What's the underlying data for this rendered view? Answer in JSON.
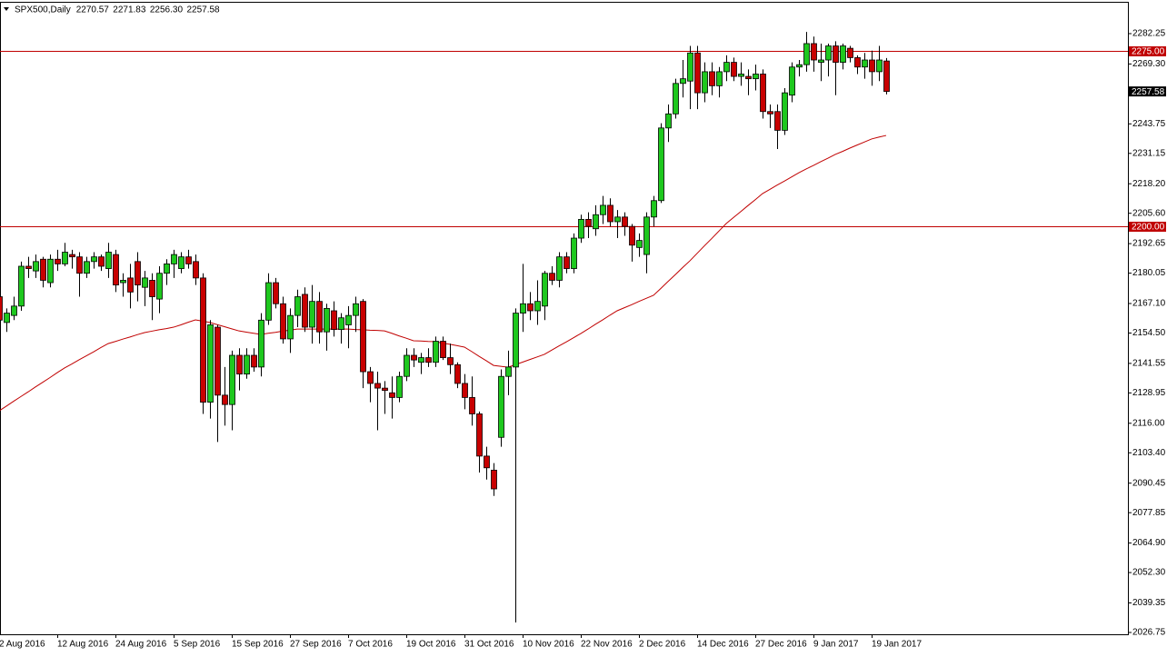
{
  "chart_data": {
    "type": "candlestick",
    "title": "SPX500,Daily",
    "last_bar_labels": [
      "2270.57",
      "2271.83",
      "2256.30",
      "2257.58"
    ],
    "categories": [
      "2 Aug 2016",
      null,
      null,
      null,
      null,
      null,
      null,
      null,
      "12 Aug 2016",
      null,
      null,
      null,
      null,
      null,
      null,
      null,
      "24 Aug 2016",
      null,
      null,
      null,
      null,
      null,
      null,
      null,
      "5 Sep 2016",
      null,
      null,
      null,
      null,
      null,
      null,
      null,
      "15 Sep 2016",
      null,
      null,
      null,
      null,
      null,
      null,
      null,
      "27 Sep 2016",
      null,
      null,
      null,
      null,
      null,
      null,
      null,
      "7 Oct 2016",
      null,
      null,
      null,
      null,
      null,
      null,
      null,
      "19 Oct 2016",
      null,
      null,
      null,
      null,
      null,
      null,
      null,
      "31 Oct 2016",
      null,
      null,
      null,
      null,
      null,
      null,
      null,
      "10 Nov 2016",
      null,
      null,
      null,
      null,
      null,
      null,
      null,
      "22 Nov 2016",
      null,
      null,
      null,
      null,
      null,
      null,
      null,
      "2 Dec 2016",
      null,
      null,
      null,
      null,
      null,
      null,
      null,
      "14 Dec 2016",
      null,
      null,
      null,
      null,
      null,
      null,
      null,
      "27 Dec 2016",
      null,
      null,
      null,
      null,
      null,
      null,
      null,
      "9 Jan 2017",
      null,
      null,
      null,
      null,
      null,
      null,
      null,
      "19 Jan 2017",
      null,
      null
    ],
    "open": [
      2170,
      2159,
      2162,
      2166,
      2183,
      2181,
      2186,
      2176,
      2186,
      2184,
      2188,
      2187,
      2180,
      2185,
      2187,
      2182,
      2188,
      2176,
      2178,
      2185,
      2174,
      2177,
      2169,
      2180,
      2184,
      2182,
      2187,
      2185,
      2178,
      2125,
      2157,
      2128,
      2124,
      2145,
      2137,
      2145,
      2140,
      2160,
      2176,
      2167,
      2152,
      2162,
      2171,
      2157,
      2168,
      2155,
      2164,
      2156,
      2158,
      2162,
      2168,
      2138,
      2133,
      2131,
      2129,
      2127,
      2136,
      2145,
      2142,
      2144,
      2142,
      2151,
      2144,
      2141,
      2133,
      2127,
      2120,
      2102,
      2096,
      2110,
      2136,
      2140,
      2163,
      2167,
      2164,
      2166,
      2180,
      2177,
      2187,
      2182,
      2195,
      2203,
      2199,
      2205,
      2209,
      2202,
      2204,
      2200,
      2191,
      2188,
      2204,
      2211,
      2242,
      2248,
      2261,
      2262,
      2274,
      2257,
      2266,
      2260,
      2266,
      2270,
      2264,
      2264,
      2263,
      2265,
      2249,
      2249,
      2241,
      2256,
      2268,
      2269,
      2278,
      2270,
      2271,
      2277,
      2270,
      2276,
      2272,
      2268,
      2271,
      2266,
      2270.57
    ],
    "high": [
      2172,
      2165,
      2170,
      2185,
      2187,
      2188,
      2187,
      2188,
      2190,
      2193,
      2190,
      2189,
      2187,
      2189,
      2188,
      2193,
      2190,
      2180,
      2184,
      2189,
      2181,
      2180,
      2183,
      2186,
      2190,
      2189,
      2190,
      2188,
      2180,
      2160,
      2158,
      2140,
      2147,
      2148,
      2148,
      2148,
      2163,
      2180,
      2178,
      2170,
      2165,
      2173,
      2174,
      2175,
      2172,
      2167,
      2168,
      2163,
      2166,
      2170,
      2169,
      2140,
      2138,
      2134,
      2136,
      2138,
      2148,
      2148,
      2146,
      2148,
      2153,
      2153,
      2150,
      2142,
      2137,
      2136,
      2121,
      2106,
      2099,
      2139,
      2147,
      2165,
      2184,
      2172,
      2177,
      2181,
      2183,
      2189,
      2189,
      2197,
      2205,
      2206,
      2209,
      2213,
      2212,
      2207,
      2206,
      2201,
      2197,
      2206,
      2213,
      2244,
      2252,
      2263,
      2271,
      2277,
      2277,
      2270,
      2270,
      2268,
      2273,
      2272,
      2270,
      2267,
      2269,
      2267,
      2252,
      2252,
      2259,
      2270,
      2271,
      2283,
      2281,
      2278,
      2278,
      2279,
      2278,
      2277,
      2273,
      2274,
      2275,
      2277,
      2271.83
    ],
    "low": [
      2147,
      2155,
      2160,
      2164,
      2178,
      2178,
      2174,
      2174,
      2181,
      2183,
      2182,
      2170,
      2178,
      2182,
      2181,
      2178,
      2172,
      2170,
      2165,
      2168,
      2166,
      2160,
      2163,
      2175,
      2178,
      2180,
      2182,
      2175,
      2120,
      2118,
      2108,
      2115,
      2113,
      2130,
      2135,
      2138,
      2136,
      2158,
      2165,
      2150,
      2146,
      2157,
      2155,
      2150,
      2150,
      2147,
      2153,
      2150,
      2148,
      2155,
      2131,
      2125,
      2113,
      2120,
      2118,
      2125,
      2134,
      2140,
      2137,
      2140,
      2140,
      2143,
      2137,
      2131,
      2122,
      2115,
      2095,
      2092,
      2085,
      2106,
      2128,
      2031,
      2155,
      2160,
      2158,
      2160,
      2175,
      2174,
      2180,
      2180,
      2193,
      2195,
      2196,
      2201,
      2200,
      2195,
      2196,
      2185,
      2187,
      2180,
      2200,
      2210,
      2236,
      2246,
      2255,
      2250,
      2250,
      2253,
      2256,
      2255,
      2262,
      2262,
      2260,
      2256,
      2258,
      2246,
      2242,
      2233,
      2239,
      2253,
      2264,
      2266,
      2266,
      2262,
      2264,
      2256,
      2267,
      2270,
      2265,
      2263,
      2260,
      2262,
      2256.3
    ],
    "close": [
      2160,
      2163,
      2166,
      2183,
      2182,
      2185,
      2177,
      2186,
      2184,
      2189,
      2187,
      2180,
      2185,
      2187,
      2183,
      2189,
      2175,
      2177,
      2172,
      2175,
      2178,
      2170,
      2180,
      2184,
      2188,
      2187,
      2184,
      2178,
      2125,
      2158,
      2128,
      2124,
      2145,
      2137,
      2145,
      2140,
      2160,
      2176,
      2167,
      2152,
      2162,
      2170,
      2157,
      2168,
      2155,
      2165,
      2156,
      2161,
      2162,
      2167,
      2138,
      2133,
      2131,
      2130,
      2127,
      2136,
      2145,
      2143,
      2144,
      2142,
      2151,
      2144,
      2141,
      2133,
      2127,
      2120,
      2102,
      2097,
      2088,
      2136,
      2140,
      2163,
      2167,
      2164,
      2168,
      2180,
      2177,
      2187,
      2182,
      2195,
      2203,
      2200,
      2205,
      2209,
      2202,
      2204,
      2200,
      2192,
      2194,
      2204,
      2211,
      2242,
      2248,
      2261,
      2263,
      2274,
      2257,
      2266,
      2260,
      2266,
      2270,
      2264,
      2265,
      2263,
      2265,
      2249,
      2248,
      2241,
      2257,
      2268,
      2269,
      2278,
      2271,
      2271,
      2277,
      2270,
      2277,
      2272,
      2268,
      2271,
      2266,
      2271,
      2257.58
    ],
    "up_color": "#1ec81e",
    "down_color": "#c80000",
    "moving_average": {
      "color": "#c00000",
      "values": [
        2121.3,
        2123.3,
        2125.4,
        2127.4,
        2129.4,
        2131.5,
        2133.5,
        2135.5,
        2137.6,
        2139.6,
        2141.3,
        2143.1,
        2144.8,
        2146.5,
        2148.3,
        2150.0,
        2150.9,
        2151.9,
        2152.8,
        2153.8,
        2154.7,
        2155.3,
        2155.9,
        2156.4,
        2157.0,
        2158.0,
        2159.1,
        2160.1,
        2159.6,
        2159.0,
        2158.1,
        2157.2,
        2156.3,
        2155.4,
        2154.9,
        2154.4,
        2153.9,
        2154.4,
        2154.8,
        2155.3,
        2155.7,
        2156.2,
        2156.2,
        2156.2,
        2156.2,
        2156.2,
        2156.2,
        2156.2,
        2156.2,
        2156.0,
        2155.9,
        2155.7,
        2155.6,
        2155.4,
        2154.4,
        2153.3,
        2152.3,
        2151.2,
        2151.1,
        2150.9,
        2150.8,
        2150.2,
        2149.7,
        2149.1,
        2148.5,
        2146.6,
        2144.6,
        2142.7,
        2140.7,
        2140.3,
        2139.9,
        2141.0,
        2142.1,
        2143.2,
        2144.3,
        2145.4,
        2147.2,
        2149.0,
        2150.7,
        2152.5,
        2154.3,
        2156.2,
        2158.2,
        2160.1,
        2162.1,
        2164.0,
        2165.3,
        2166.6,
        2168.0,
        2169.3,
        2170.6,
        2173.5,
        2176.5,
        2179.4,
        2182.4,
        2185.3,
        2188.5,
        2191.7,
        2194.8,
        2198.0,
        2201.2,
        2203.8,
        2206.3,
        2208.9,
        2211.4,
        2214.0,
        2215.8,
        2217.6,
        2219.3,
        2221.1,
        2222.9,
        2224.5,
        2226.0,
        2227.6,
        2229.1,
        2230.7,
        2232.0,
        2233.4,
        2234.7,
        2236.0,
        2237.3,
        2238.1,
        2238.8
      ]
    },
    "horizontal_lines": [
      {
        "value": 2275,
        "label": "2275.00",
        "color": "#c00000"
      },
      {
        "value": 2200,
        "label": "2200.00",
        "color": "#c00000"
      }
    ],
    "current_price": {
      "value": 2257.58,
      "label": "2257.58",
      "color": "#000000"
    },
    "ylim": [
      2025.97,
      2295.82
    ],
    "yticks": [
      2282.25,
      {
        "value": 2269.3,
        "label": "2269.30"
      },
      2243.75,
      2231.15,
      {
        "value": 2218.2,
        "label": "2218.20"
      },
      {
        "value": 2205.6,
        "label": "2205.60"
      },
      2192.65,
      2180.05,
      {
        "value": 2167.1,
        "label": "2167.10"
      },
      {
        "value": 2154.5,
        "label": "2154.50"
      },
      2141.55,
      2128.95,
      {
        "value": 2116,
        "label": "2116.00"
      },
      {
        "value": 2103.4,
        "label": "2103.40"
      },
      2090.45,
      2077.85,
      {
        "value": 2064.9,
        "label": "2064.90"
      },
      {
        "value": 2052.3,
        "label": "2052.30"
      },
      2039.35,
      2026.75
    ],
    "grid": false
  }
}
